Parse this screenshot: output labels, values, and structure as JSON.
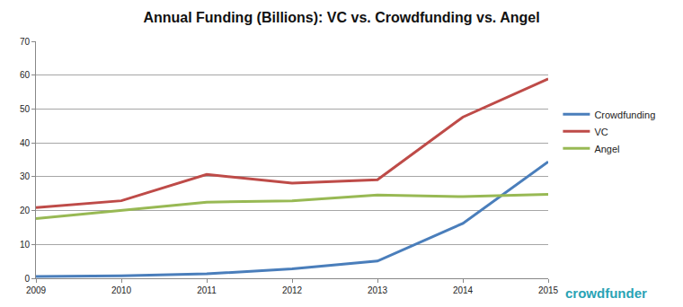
{
  "chart_data": {
    "type": "line",
    "title": "Annual Funding (Billions): VC vs. Crowdfunding vs. Angel",
    "categories": [
      "2009",
      "2010",
      "2011",
      "2012",
      "2013",
      "2014",
      "2015"
    ],
    "series": [
      {
        "name": "Crowdfunding",
        "color": "#4a7ebb",
        "values": [
          0.5,
          0.7,
          1.3,
          2.8,
          5.1,
          16.2,
          34.4
        ]
      },
      {
        "name": "VC",
        "color": "#be4b48",
        "values": [
          20.9,
          22.9,
          30.7,
          28.1,
          29.1,
          47.6,
          58.9
        ]
      },
      {
        "name": "Angel",
        "color": "#98b954",
        "values": [
          17.6,
          20.1,
          22.5,
          22.9,
          24.6,
          24.1,
          24.8
        ]
      }
    ],
    "ylim": [
      0,
      70
    ],
    "yticks": [
      0,
      10,
      20,
      30,
      40,
      50,
      60,
      70
    ],
    "grid": true,
    "legend": "right",
    "annotations": [
      "crowdfunder"
    ]
  }
}
